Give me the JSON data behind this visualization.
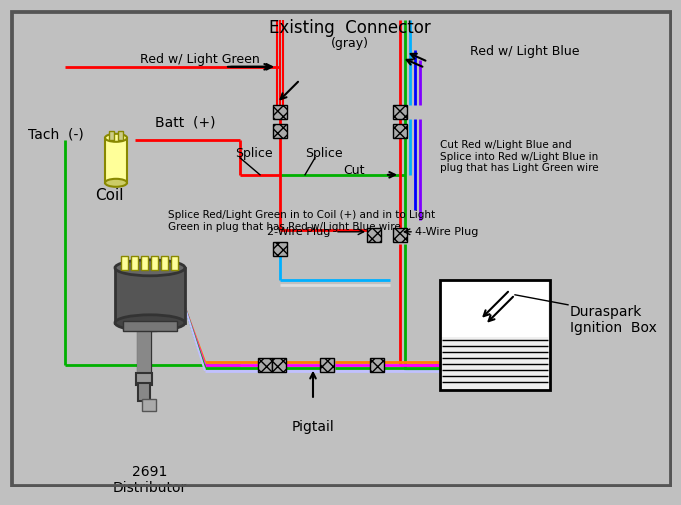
{
  "bg_color": "#c0c0c0",
  "labels": {
    "red_light_green": "Red w/ Light Green",
    "existing_connector": "Existing  Connector",
    "gray": "(gray)",
    "red_light_blue": "Red w/ Light Blue",
    "tach_minus": "Tach  (-)",
    "batt_plus": "Batt  (+)",
    "coil": "Coil",
    "splice1": "Splice",
    "splice2": "Splice",
    "cut": "Cut",
    "note1": "Splice Red/Light Green in to Coil (+) and in to Light\nGreen in plug that has Red w/Light Blue wire",
    "note2": "Cut Red w/Light Blue and\nSplice into Red w/Light Blue in\nplug that has Light Green wire",
    "wire_plug_2": "2-Wire Plug",
    "wire_plug_4": "4-Wire Plug",
    "duraspark": "Duraspark\nIgnition  Box",
    "pigtail": "Pigtail",
    "distributor": "2691\nDistributor"
  },
  "colors": {
    "red": "#ff0000",
    "green": "#00b000",
    "blue": "#0000ff",
    "light_blue": "#00b0ff",
    "orange": "#ff8000",
    "magenta": "#ff00ff",
    "purple": "#8000ff",
    "yellow_light": "#ffff99",
    "dark_gray": "#606060",
    "mid_gray": "#909090",
    "light_gray": "#d0d0d0",
    "black": "#000000",
    "white": "#ffffff"
  }
}
